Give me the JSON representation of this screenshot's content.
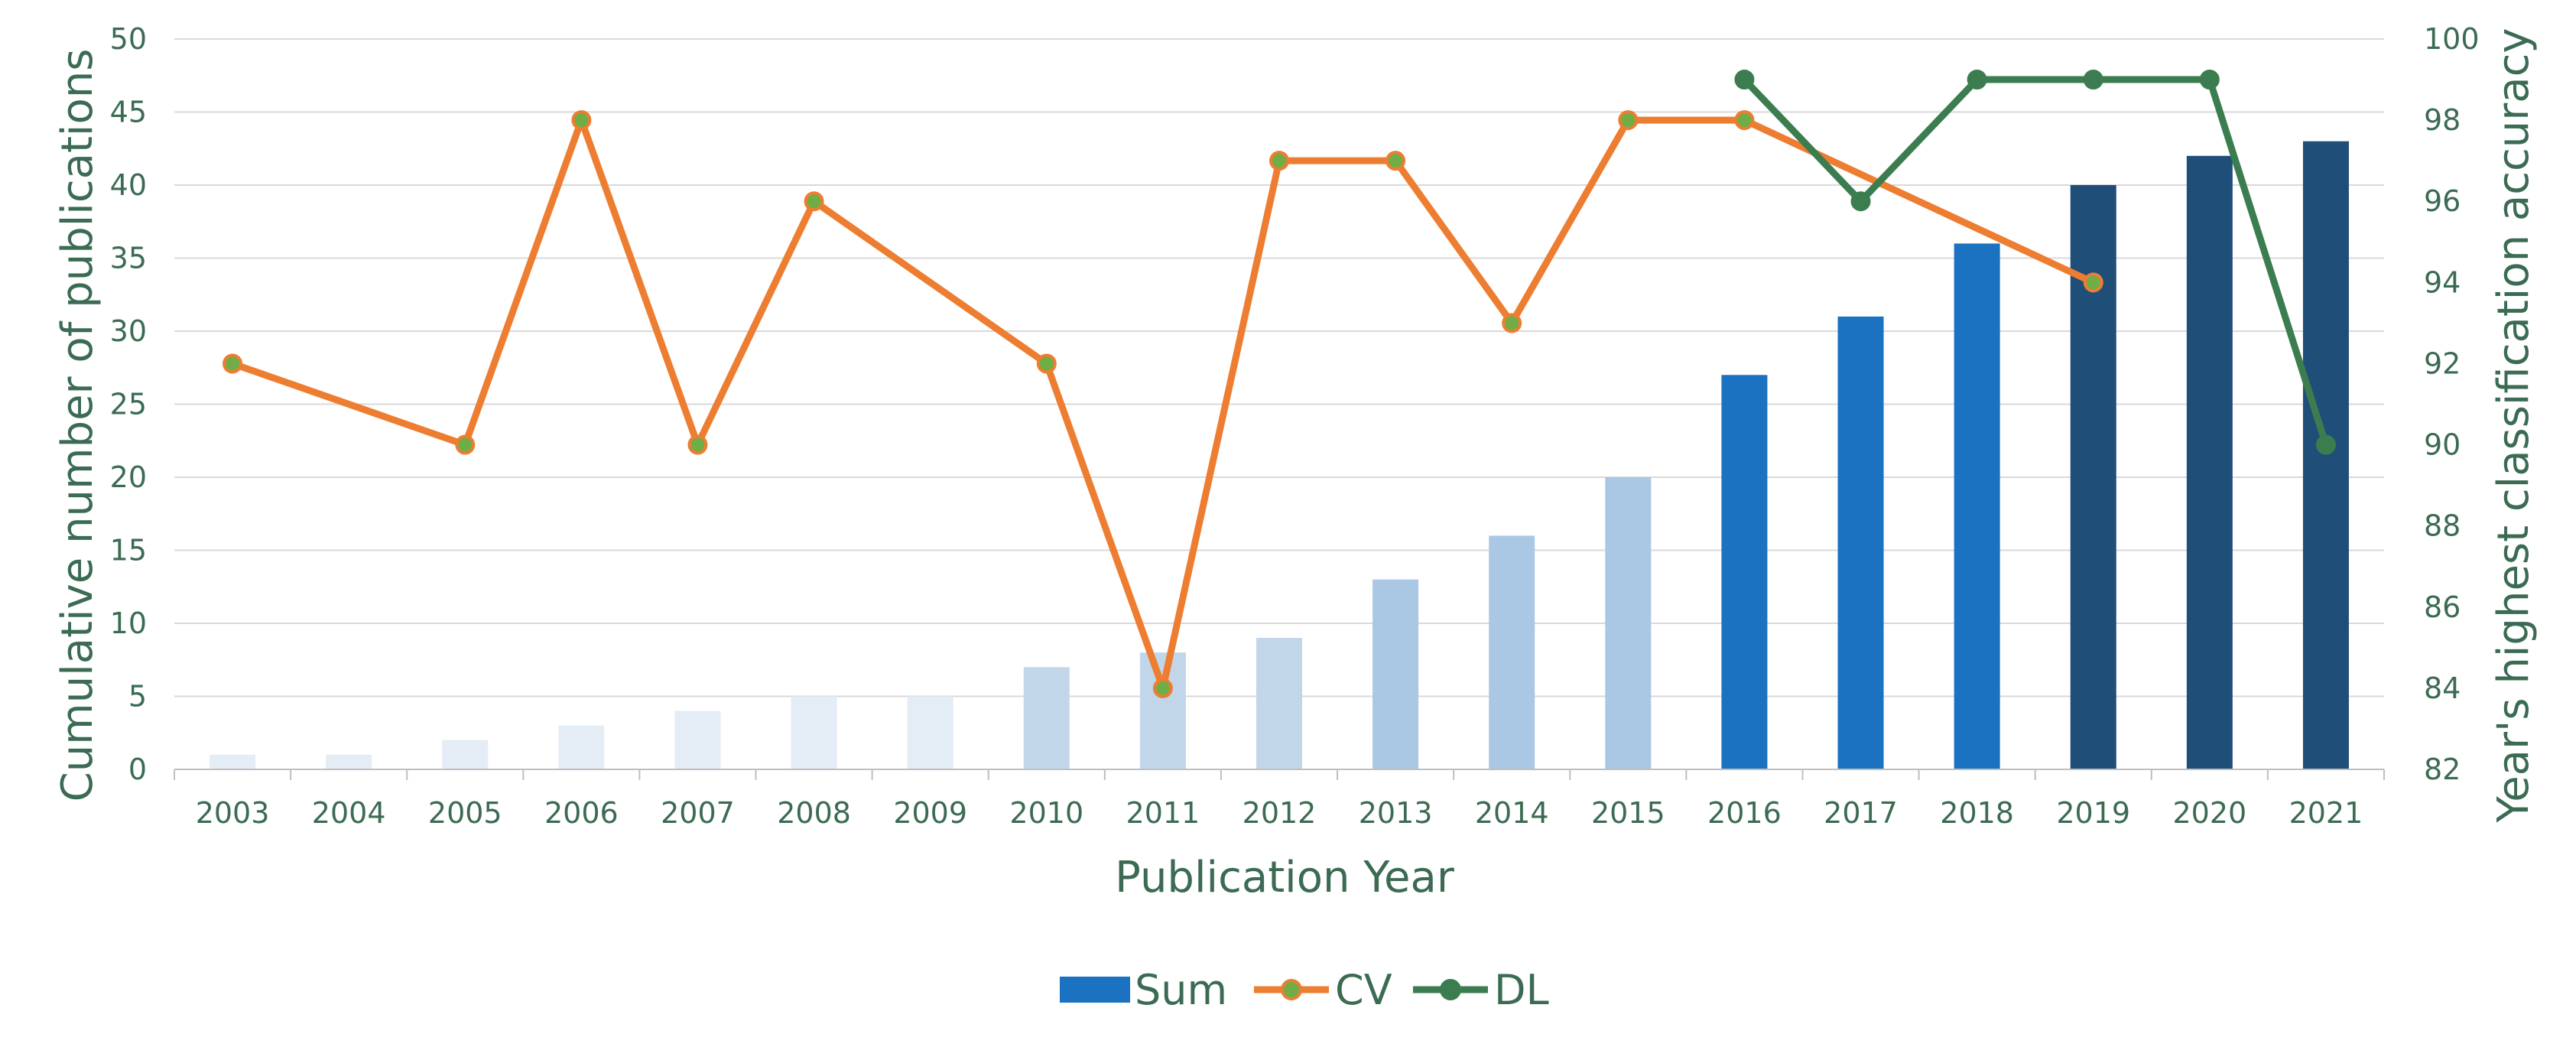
{
  "chart_data": {
    "type": "bar",
    "title": "",
    "xlabel": "Publication Year",
    "ylabel": "Cumulative number of publications",
    "y2label": "Year's highest classification accuracy",
    "ylim": [
      0,
      50
    ],
    "yticks": [
      "0",
      "5",
      "10",
      "15",
      "20",
      "25",
      "30",
      "35",
      "40",
      "45",
      "50"
    ],
    "y2lim": [
      82,
      100
    ],
    "y2ticks": [
      "82",
      "84",
      "86",
      "88",
      "90",
      "92",
      "94",
      "96",
      "98",
      "100"
    ],
    "grid": true,
    "legend_position": "bottom",
    "categories": [
      "2003",
      "2004",
      "2005",
      "2006",
      "2007",
      "2008",
      "2009",
      "2010",
      "2011",
      "2012",
      "2013",
      "2014",
      "2015",
      "2016",
      "2017",
      "2018",
      "2019",
      "2020",
      "2021"
    ],
    "series": [
      {
        "name": "Sum",
        "kind": "bar",
        "axis": "left",
        "values": [
          1,
          1,
          2,
          3,
          4,
          5,
          5,
          7,
          8,
          9,
          13,
          16,
          20,
          27,
          31,
          36,
          40,
          42,
          43
        ],
        "colors": [
          "#e4ecf6",
          "#e4ecf6",
          "#e4ecf6",
          "#e4ecf6",
          "#e4ecf6",
          "#e4ecf6",
          "#e4ecf6",
          "#c2d6ea",
          "#c2d6ea",
          "#c2d6ea",
          "#aac8e4",
          "#aac8e4",
          "#aac8e4",
          "#1a72c0",
          "#1a72c0",
          "#1a72c0",
          "#1f4e79",
          "#1f4e79",
          "#1f4e79"
        ],
        "legend_color": "#1a72c0"
      },
      {
        "name": "CV",
        "kind": "line",
        "axis": "right",
        "values": [
          92,
          null,
          90,
          98,
          90,
          96,
          null,
          92,
          84,
          97,
          97,
          93,
          98,
          98,
          null,
          null,
          94,
          null,
          null
        ],
        "connect_gaps": true,
        "color": "#ed7d31",
        "marker_color": "#70ad47"
      },
      {
        "name": "DL",
        "kind": "line",
        "axis": "right",
        "values": [
          null,
          null,
          null,
          null,
          null,
          null,
          null,
          null,
          null,
          null,
          null,
          null,
          null,
          99,
          96,
          99,
          99,
          99,
          90
        ],
        "connect_gaps": false,
        "color": "#3b7d4f",
        "marker_color": "#3b7d4f"
      }
    ]
  }
}
